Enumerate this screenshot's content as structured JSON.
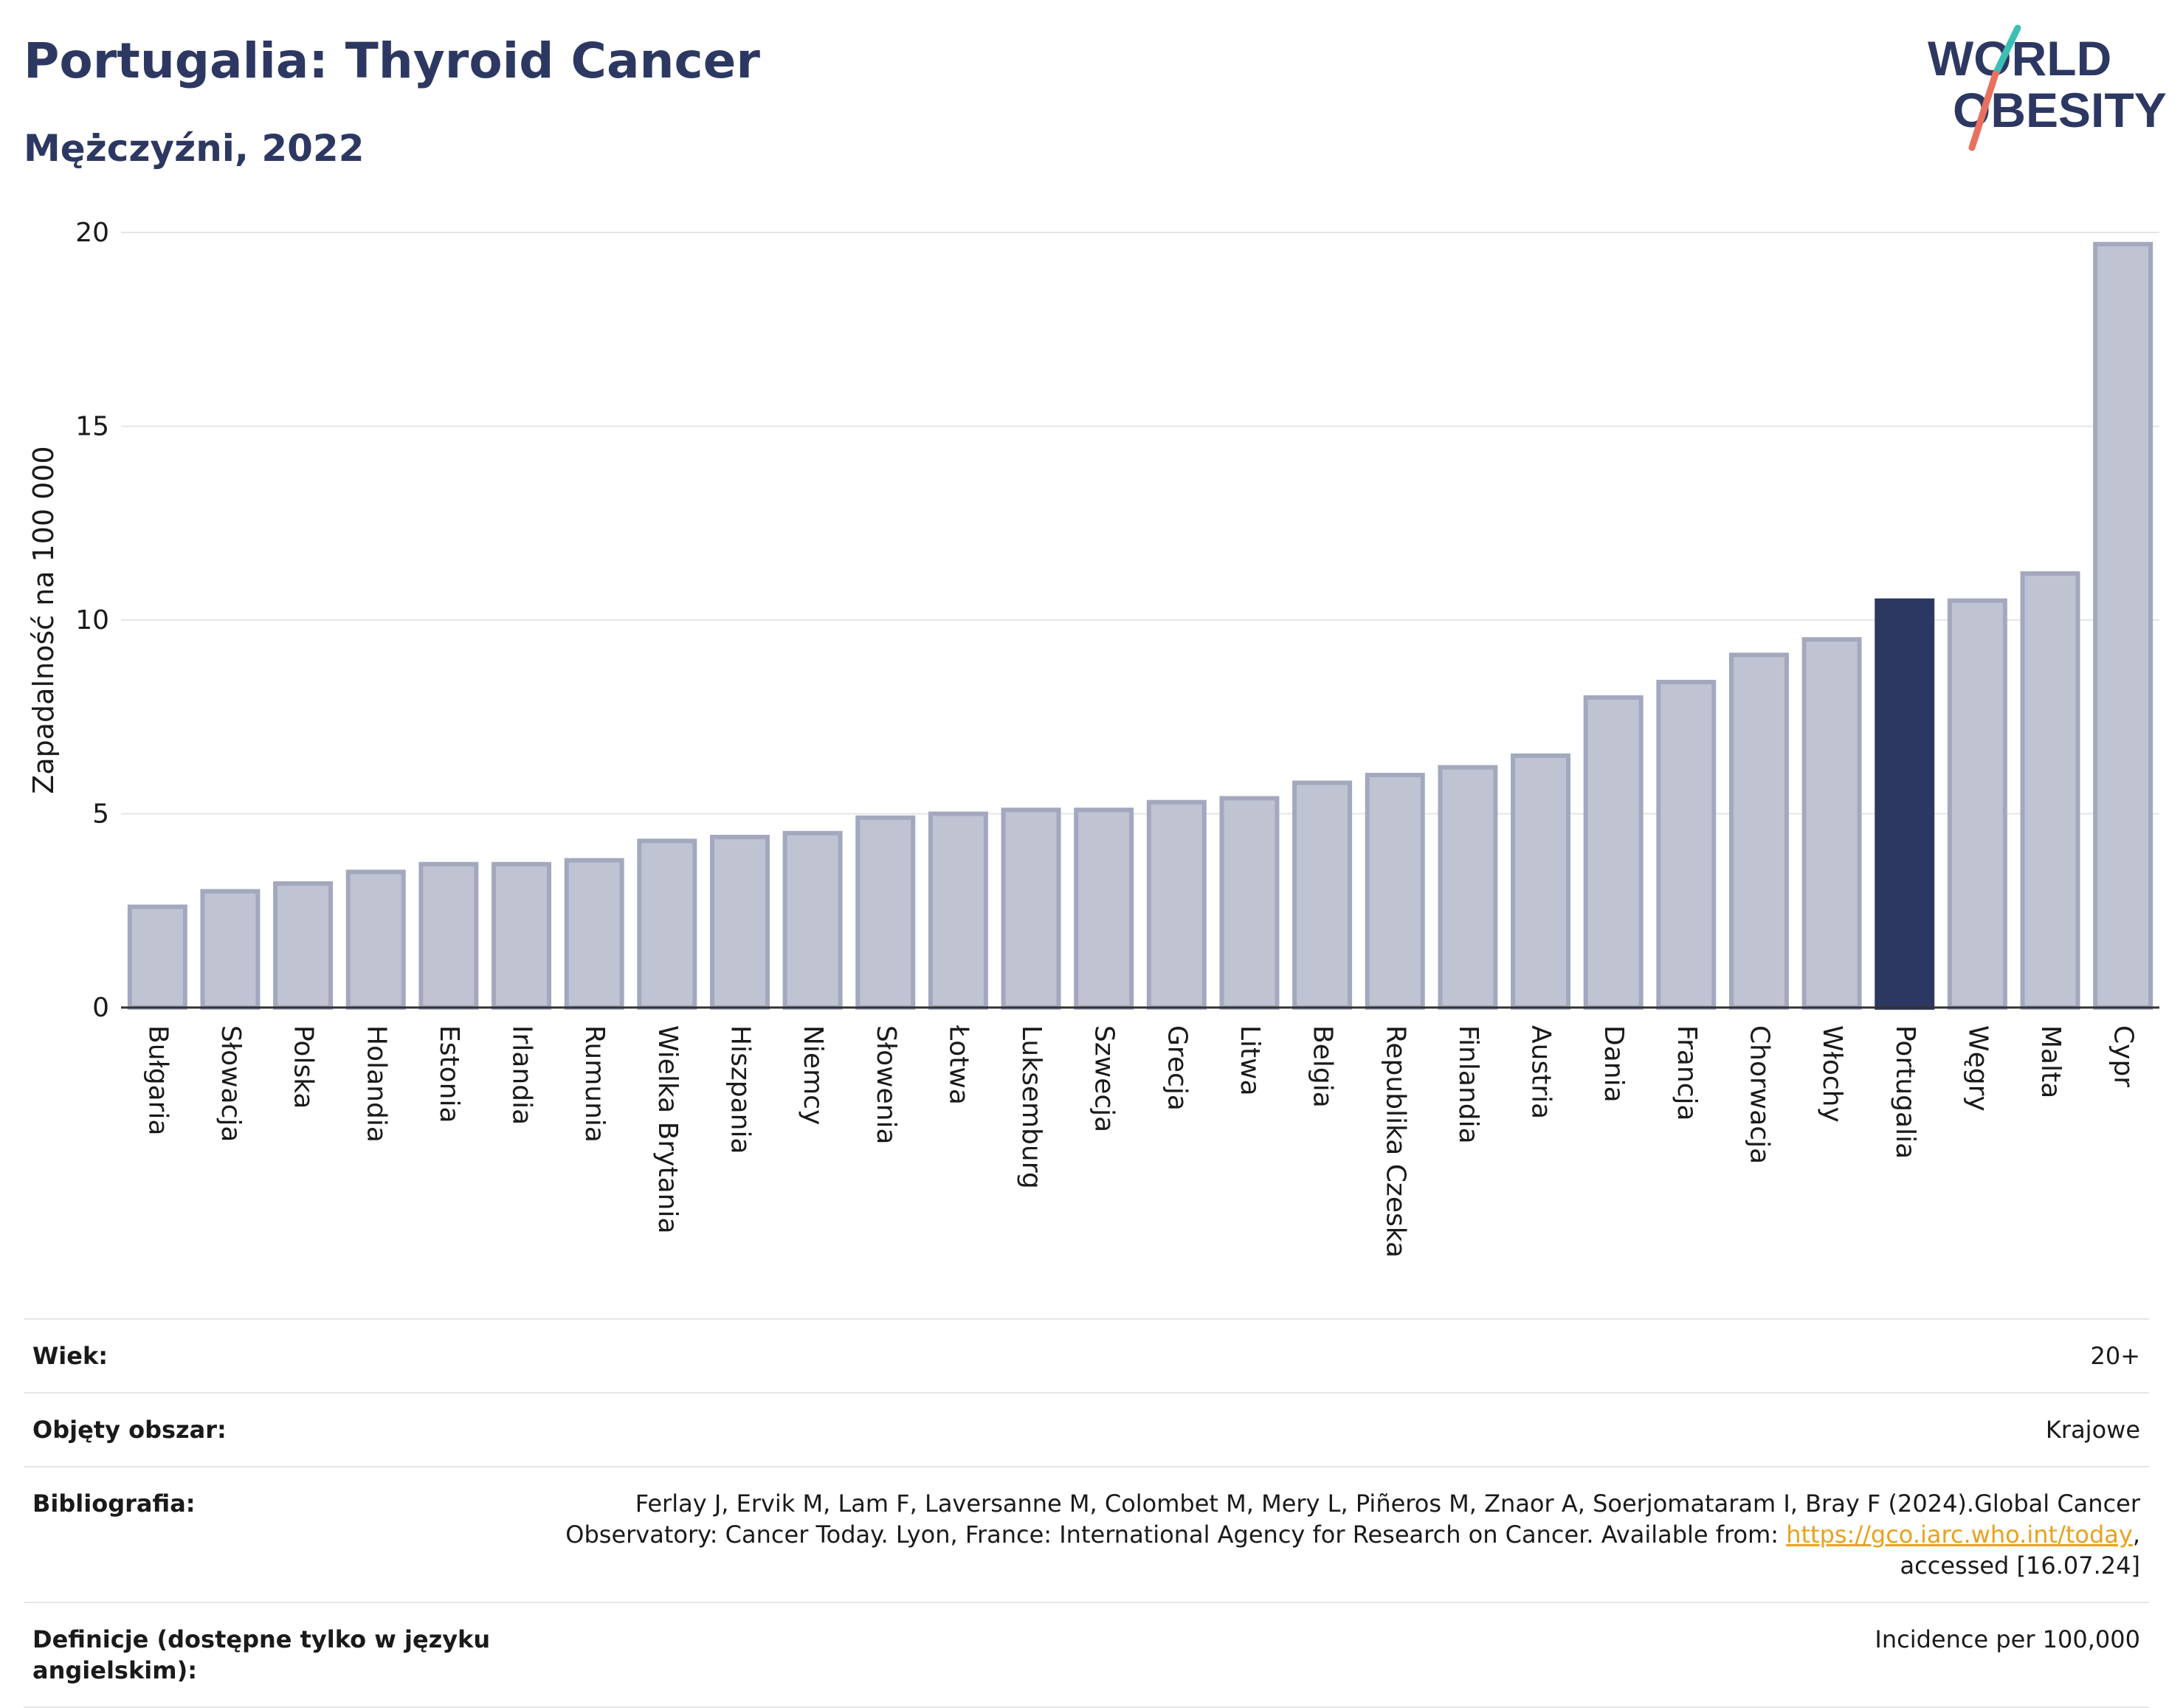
{
  "header": {
    "title": "Portugalia: Thyroid Cancer",
    "subtitle": "Mężczyźni, 2022"
  },
  "logo": {
    "line1": "WORLD",
    "line2": "OBESITY",
    "colors": {
      "text": "#2d3862",
      "slash_top": "#3bbfb4",
      "slash_bottom": "#e8705f"
    }
  },
  "chart_data": {
    "type": "bar",
    "ylabel": "Zapadalność na 100 000",
    "ylim": [
      0,
      20
    ],
    "yticks": [
      0,
      5,
      10,
      15,
      20
    ],
    "grid": true,
    "highlight": "Portugalia",
    "colors": {
      "bar": "#bfc3d2",
      "bar_border": "#a3a8bf",
      "highlight": "#2d3862",
      "grid": "#e6e6e6",
      "axis": "#333333"
    },
    "categories": [
      "Bułgaria",
      "Słowacja",
      "Polska",
      "Holandia",
      "Estonia",
      "Irlandia",
      "Rumunia",
      "Wielka Brytania",
      "Hiszpania",
      "Niemcy",
      "Słowenia",
      "Łotwa",
      "Luksemburg",
      "Szwecja",
      "Grecja",
      "Litwa",
      "Belgia",
      "Republika Czeska",
      "Finlandia",
      "Austria",
      "Dania",
      "Francja",
      "Chorwacja",
      "Włochy",
      "Portugalia",
      "Węgry",
      "Malta",
      "Cypr"
    ],
    "values": [
      2.6,
      3.0,
      3.2,
      3.5,
      3.7,
      3.7,
      3.8,
      4.3,
      4.4,
      4.5,
      4.9,
      5.0,
      5.1,
      5.1,
      5.3,
      5.4,
      5.8,
      6.0,
      6.2,
      6.5,
      8.0,
      8.4,
      9.1,
      9.5,
      10.5,
      10.5,
      11.2,
      19.7
    ]
  },
  "meta": {
    "age_label": "Wiek:",
    "age_value": "20+",
    "coverage_label": "Objęty obszar:",
    "coverage_value": "Krajowe",
    "bib_label": "Bibliografia:",
    "bib_line1": "Ferlay J, Ervik M, Lam F, Laversanne M, Colombet M, Mery L, Piñeros M, Znaor A, Soerjomataram I, Bray F (2024).Global Cancer",
    "bib_line2_pre": "Observatory: Cancer Today. Lyon, France: International Agency for Research on Cancer. Available from: ",
    "bib_link": "https://gco.iarc.who.int/today",
    "bib_line2_post": ",",
    "bib_line3": "accessed [16.07.24]",
    "def_label": "Definicje (dostępne tylko w języku angielskim):",
    "def_value": "Incidence per 100,000"
  }
}
